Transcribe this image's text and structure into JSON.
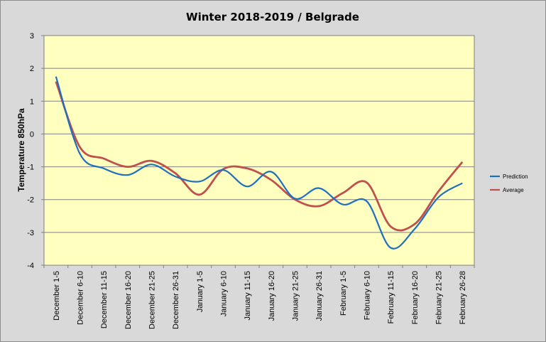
{
  "chart_data": {
    "type": "line",
    "title": "Winter 2018-2019 / Belgrade",
    "xlabel": "",
    "ylabel": "Temperature 850hPa",
    "ylim": [
      -4,
      3
    ],
    "yticks": [
      3,
      2,
      1,
      0,
      -1,
      -2,
      -3,
      -4
    ],
    "grid": true,
    "legend_position": "right",
    "categories": [
      "December 1-5",
      "December 6-10",
      "December 11-15",
      "December 16-20",
      "December 21-25",
      "December 26-31",
      "January 1-5",
      "January 6-10",
      "January 11-15",
      "January 16-20",
      "January 21-25",
      "January 26-31",
      "February 1-5",
      "February 6-10",
      "February 11-15",
      "February 16-20",
      "February 21-25",
      "February 26-28"
    ],
    "series": [
      {
        "name": "Prediction",
        "color": "#1f6fbf",
        "values": [
          1.75,
          -0.6,
          -1.05,
          -1.25,
          -0.93,
          -1.3,
          -1.45,
          -1.1,
          -1.6,
          -1.15,
          -1.97,
          -1.65,
          -2.15,
          -2.05,
          -3.47,
          -2.9,
          -1.93,
          -1.5
        ]
      },
      {
        "name": "Average",
        "color": "#c0504d",
        "values": [
          1.6,
          -0.4,
          -0.75,
          -1.0,
          -0.82,
          -1.2,
          -1.85,
          -1.07,
          -1.05,
          -1.4,
          -2.0,
          -2.2,
          -1.8,
          -1.48,
          -2.82,
          -2.75,
          -1.75,
          -0.85
        ]
      }
    ]
  }
}
